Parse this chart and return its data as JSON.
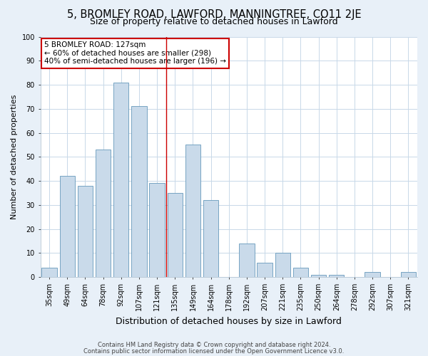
{
  "title": "5, BROMLEY ROAD, LAWFORD, MANNINGTREE, CO11 2JE",
  "subtitle": "Size of property relative to detached houses in Lawford",
  "xlabel": "Distribution of detached houses by size in Lawford",
  "ylabel": "Number of detached properties",
  "categories": [
    "35sqm",
    "49sqm",
    "64sqm",
    "78sqm",
    "92sqm",
    "107sqm",
    "121sqm",
    "135sqm",
    "149sqm",
    "164sqm",
    "178sqm",
    "192sqm",
    "207sqm",
    "221sqm",
    "235sqm",
    "250sqm",
    "264sqm",
    "278sqm",
    "292sqm",
    "307sqm",
    "321sqm"
  ],
  "values": [
    4,
    42,
    38,
    53,
    81,
    71,
    39,
    35,
    55,
    32,
    0,
    14,
    6,
    10,
    4,
    1,
    1,
    0,
    2,
    0,
    2
  ],
  "bar_color": "#c9daea",
  "bar_edge_color": "#6699bb",
  "annotation_text": "5 BROMLEY ROAD: 127sqm\n← 60% of detached houses are smaller (298)\n40% of semi-detached houses are larger (196) →",
  "annotation_box_facecolor": "#ffffff",
  "annotation_box_edgecolor": "#cc0000",
  "vline_color": "#cc0000",
  "grid_color": "#c8d8e8",
  "plot_bg_color": "#ffffff",
  "fig_bg_color": "#e8f0f8",
  "footer1": "Contains HM Land Registry data © Crown copyright and database right 2024.",
  "footer2": "Contains public sector information licensed under the Open Government Licence v3.0.",
  "ylim": [
    0,
    100
  ],
  "title_fontsize": 10.5,
  "subtitle_fontsize": 9,
  "ylabel_fontsize": 8,
  "xlabel_fontsize": 9,
  "tick_fontsize": 7,
  "footer_fontsize": 6,
  "annot_fontsize": 7.5
}
